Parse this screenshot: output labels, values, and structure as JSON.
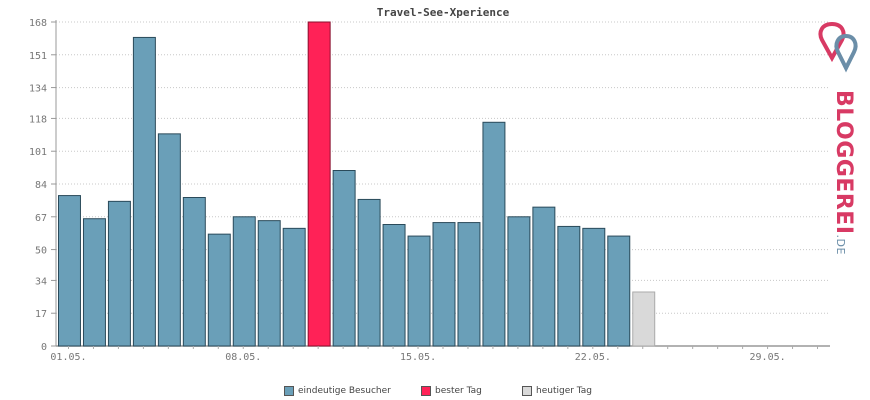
{
  "chart_data": {
    "type": "bar",
    "title": "Travel-See-Xperience",
    "ylim": [
      0,
      168
    ],
    "yticks": [
      "0",
      "17",
      "34",
      "50",
      "67",
      "84",
      "101",
      "118",
      "134",
      "151",
      "168"
    ],
    "xtick_labels": [
      {
        "index": 0,
        "label": "01.05."
      },
      {
        "index": 7,
        "label": "08.05."
      },
      {
        "index": 14,
        "label": "15.05."
      },
      {
        "index": 21,
        "label": "22.05."
      },
      {
        "index": 28,
        "label": "29.05."
      }
    ],
    "num_days": 31,
    "grid": true,
    "series": [
      {
        "name": "eindeutige Besucher",
        "color": "#6a9fb8",
        "values": [
          78,
          66,
          75,
          160,
          110,
          77,
          58,
          67,
          65,
          61,
          168,
          91,
          76,
          63,
          57,
          64,
          64,
          116,
          67,
          72,
          62,
          61,
          57,
          28,
          0,
          0,
          0,
          0,
          0,
          0,
          0
        ]
      }
    ],
    "best_day_index": 10,
    "today_index": 23,
    "legend": {
      "position": "bottom-center",
      "items": [
        {
          "label": "eindeutige Besucher",
          "color": "#6a9fb8"
        },
        {
          "label": "bester Tag",
          "color": "#ff2257"
        },
        {
          "label": "heutiger Tag",
          "color": "#d9d9d9"
        }
      ]
    }
  },
  "logo": {
    "main": "BLOGGEREI",
    "tld": ".DE",
    "colors": {
      "pink": "#d83a64",
      "blue": "#6b8ea8",
      "gray": "#999999"
    }
  }
}
